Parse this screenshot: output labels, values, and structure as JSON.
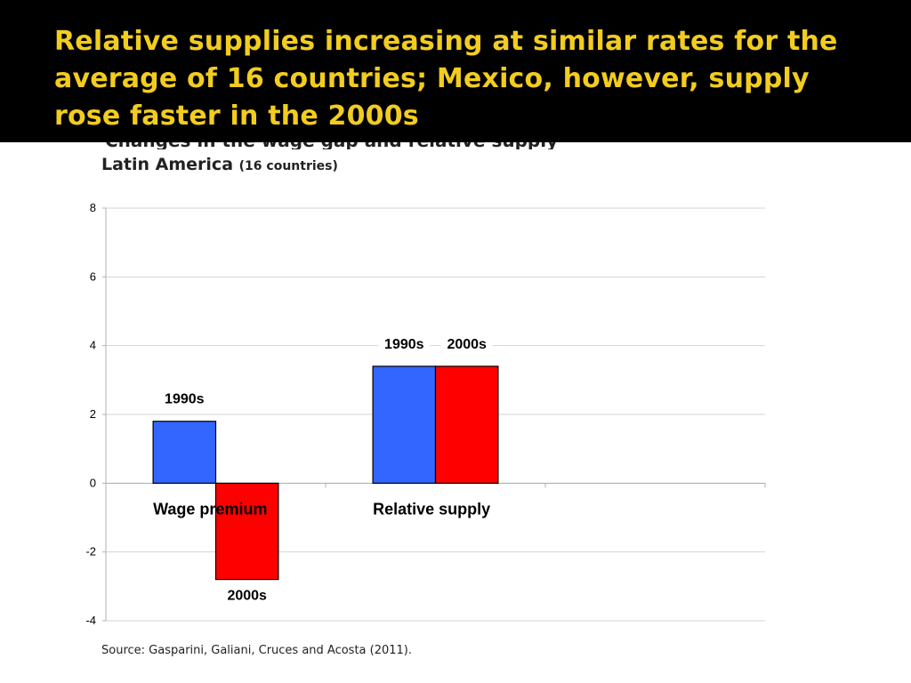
{
  "slide": {
    "title": "Relative supplies increasing at similar rates for the average of 16 countries; Mexico, however, supply rose faster in the 2000s",
    "subtitle_partial": "Changes in the wage gap and relative supply",
    "region": "Latin America",
    "region_note": "(16 countries)",
    "source": "Source: Gasparini, Galiani, Cruces and Acosta (2011)."
  },
  "colors": {
    "title_text": "#f2cc1f",
    "title_bg": "#000000",
    "series_1990s": "#3366ff",
    "series_2000s": "#ff0000"
  },
  "chart_data": {
    "type": "bar",
    "categories": [
      "Wage premium",
      "Relative supply"
    ],
    "series": [
      {
        "name": "1990s",
        "values": [
          1.8,
          3.4
        ]
      },
      {
        "name": "2000s",
        "values": [
          -2.8,
          3.4
        ]
      }
    ],
    "data_labels": [
      {
        "text": "1990s",
        "category": 0,
        "series": 0
      },
      {
        "text": "2000s",
        "category": 0,
        "series": 1
      },
      {
        "text": "1990s",
        "category": 1,
        "series": 0
      },
      {
        "text": "2000s",
        "category": 1,
        "series": 1
      }
    ],
    "ylim": [
      -4,
      8
    ],
    "yticks": [
      -4,
      -2,
      0,
      2,
      4,
      6,
      8
    ],
    "grid": true,
    "legend": "none",
    "title": "",
    "xlabel": "",
    "ylabel": ""
  }
}
